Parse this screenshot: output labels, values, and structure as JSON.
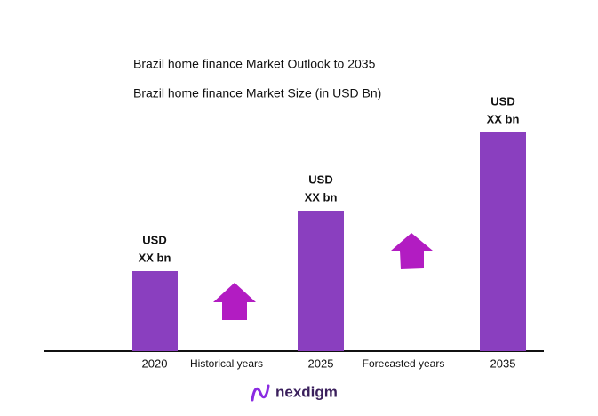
{
  "chart_data": {
    "type": "bar",
    "title": "Brazil home finance Market Outlook to 2035",
    "subtitle": "Brazil home finance Market Size (in USD Bn)",
    "categories": [
      "2020",
      "2025",
      "2035"
    ],
    "values": [
      90,
      158,
      246
    ],
    "value_labels": [
      [
        "USD",
        "XX bn"
      ],
      [
        "USD",
        "XX bn"
      ],
      [
        "USD",
        "XX bn"
      ]
    ],
    "color": "#8a3fbf",
    "ylim": [
      0,
      300
    ],
    "annotations": [
      "Historical years",
      "Forecasted years"
    ],
    "brand": "nexdigm"
  }
}
